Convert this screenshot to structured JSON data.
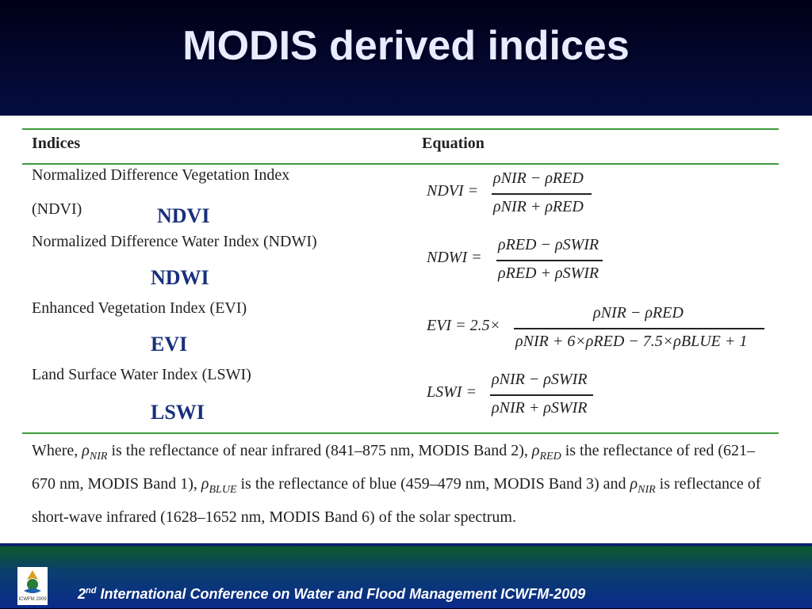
{
  "slide": {
    "title": "MODIS derived indices"
  },
  "table": {
    "header_indices": "Indices",
    "header_equation": "Equation",
    "rows": [
      {
        "description_line1": "Normalized  Difference Vegetation Index",
        "description_line2": "(NDVI)",
        "abbr": "NDVI",
        "eq_lhs": "NDVI =",
        "eq_numerator": "ρNIR − ρRED",
        "eq_denominator": "ρNIR + ρRED"
      },
      {
        "description_line1": "Normalized  Difference Water Index (NDWI)",
        "abbr": "NDWI",
        "eq_lhs": "NDWI =",
        "eq_numerator": "ρRED − ρSWIR",
        "eq_denominator": "ρRED + ρSWIR"
      },
      {
        "description_line1": "Enhanced Vegetation Index (EVI)",
        "abbr": "EVI",
        "eq_lhs": "EVI = 2.5×",
        "eq_numerator": "ρNIR − ρRED",
        "eq_denominator": "ρNIR + 6×ρRED − 7.5×ρBLUE + 1"
      },
      {
        "description_line1": "Land Surface Water Index (LSWI)",
        "abbr": "LSWI",
        "eq_lhs": "LSWI =",
        "eq_numerator": "ρNIR − ρSWIR",
        "eq_denominator": "ρNIR + ρSWIR"
      }
    ],
    "note": {
      "p1": "Where,",
      "s_nir": "NIR",
      "p2": "is the reflectance of near infrared (841–875 nm, MODIS Band 2),",
      "s_red": "RED",
      "p3": "is the",
      "p4": "reflectance of red (621–670 nm, MODIS Band 1),",
      "s_blue": "BLUE",
      "p5": "is the reflectance of blue (459–479 nm,",
      "p6": "MODIS Band 3) and",
      "s_nir2": "NIR",
      "p7": "is reflectance of short-wave infrared (1628–1652 nm, MODIS Band 6)",
      "p8": "of the solar spectrum."
    }
  },
  "footer": {
    "ordinal": "2",
    "ordinal_sup": "nd",
    "text": "International Conference on Water and Flood Management ICWFM-2009",
    "logo_text": "ICWFM 2009"
  },
  "colors": {
    "rule_green": "#3e9a3e",
    "abbr_blue": "#18307c",
    "title_color": "#e8ecff"
  }
}
